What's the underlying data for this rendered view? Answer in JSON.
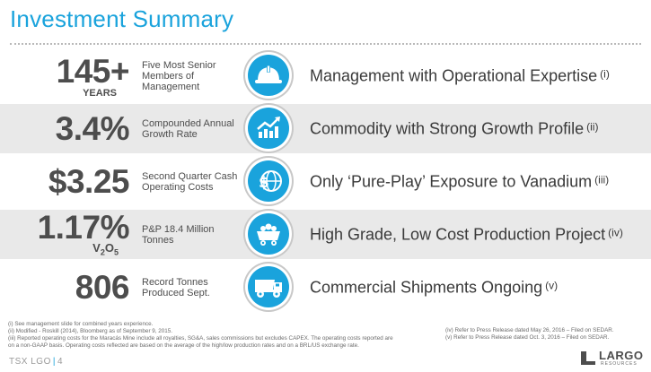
{
  "title": "Investment Summary",
  "rows": [
    {
      "stat": "145+",
      "unit": "YEARS",
      "description": "Five Most Senior Members of Management",
      "icon": "hard-hat-icon",
      "headline": "Management with Operational Expertise",
      "note": "(i)"
    },
    {
      "stat": "3.4%",
      "unit": "",
      "description": "Compounded Annual Growth Rate",
      "icon": "growth-chart-icon",
      "headline": "Commodity with Strong Growth Profile",
      "note": "(ii)"
    },
    {
      "stat": "$3.25",
      "unit": "",
      "description": "Second Quarter Cash Operating Costs",
      "icon": "dollar-globe-icon",
      "headline": "Only ‘Pure-Play’ Exposure to Vanadium",
      "note": "(iii)"
    },
    {
      "stat": "1.17%",
      "unit_main": "V",
      "unit_sub1": "2",
      "unit_mid": "O",
      "unit_sub2": "5",
      "description": "P&P 18.4 Million Tonnes",
      "icon": "mine-cart-icon",
      "headline": "High Grade, Low Cost Production Project",
      "note": "(iv)"
    },
    {
      "stat": "806",
      "unit": "",
      "description": "Record Tonnes Produced Sept.",
      "icon": "haul-truck-icon",
      "headline": "Commercial Shipments Ongoing",
      "note": "(v)"
    }
  ],
  "footnotes_left": [
    "(i) See management slide for combined years experience.",
    "(ii) Modified - Roskill (2014), Bloomberg as of September 9, 2015.",
    "(iii) Reported operating costs for the Maracás Mine include all royalties, SG&A, sales commissions but excludes CAPEX. The operating costs reported are",
    "on a non-GAAP basis. Operating costs reflected are based on the average of the high/low production rates and on a BRL/US exchange rate."
  ],
  "footnotes_right": [
    "(iv) Refer to Press Release dated May 26, 2016 – Filed on SEDAR.",
    "(v) Refer to Press Release dated Oct. 3, 2016 – Filed on SEDAR."
  ],
  "footer": {
    "ticker": "TSX LGO",
    "separator": "|",
    "page": "4"
  },
  "logo": {
    "word": "LARGO",
    "sub": "RESOURCES"
  },
  "colors": {
    "accent": "#1aa3dc",
    "row_alt": "#e9e9e9",
    "text": "#3a3a3a"
  }
}
